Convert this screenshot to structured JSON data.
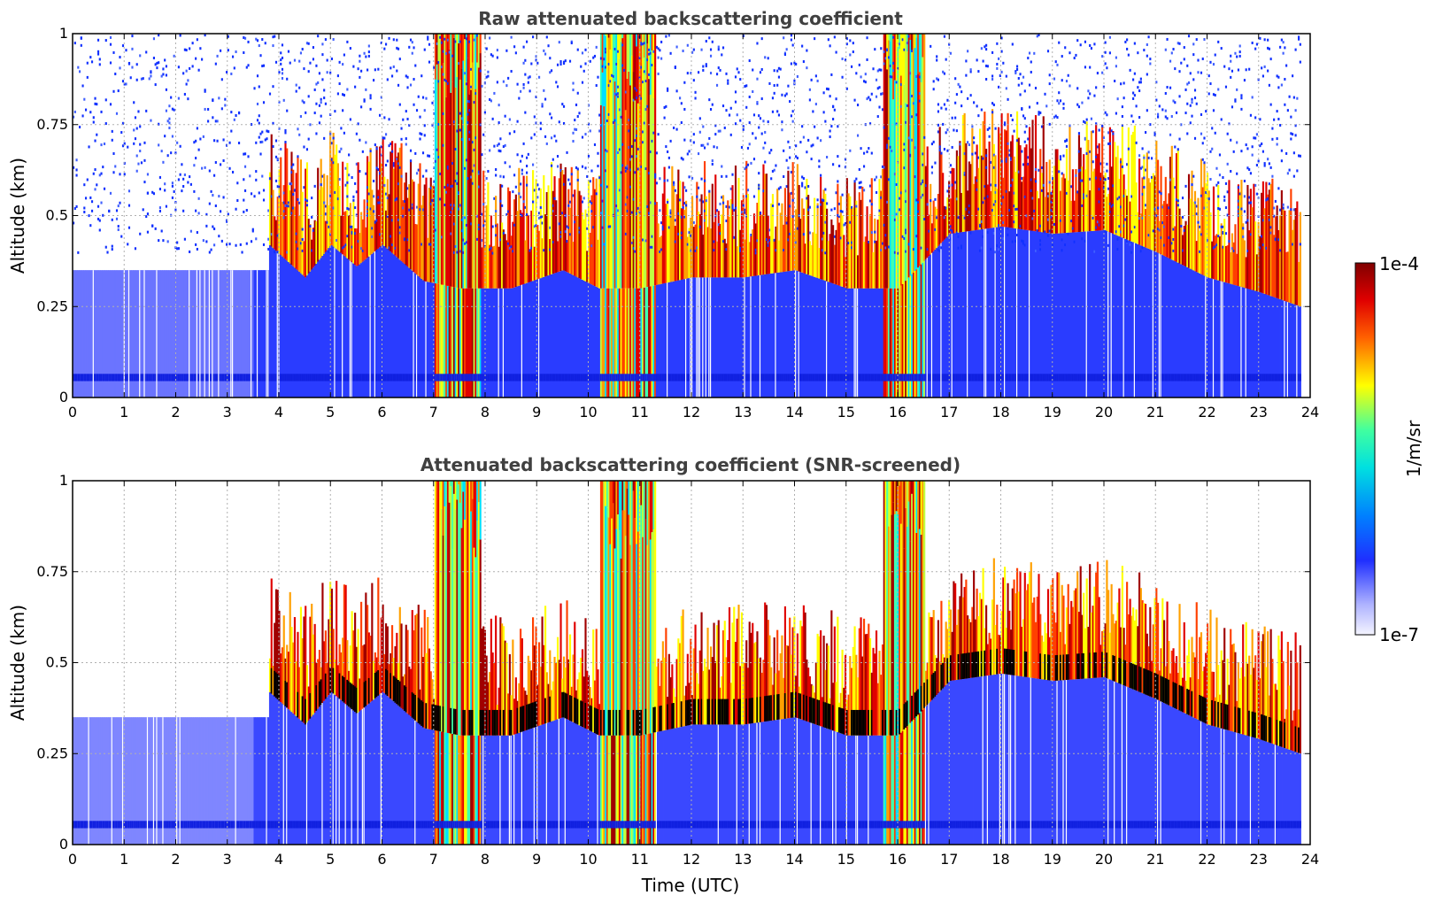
{
  "chart_data": [
    {
      "type": "heatmap",
      "title": "Raw attenuated backscattering coefficient",
      "xlabel": "",
      "ylabel": "Altitude (km)",
      "xlim": [
        0,
        24
      ],
      "ylim": [
        0,
        1
      ],
      "x_ticks": [
        "0",
        "1",
        "2",
        "3",
        "4",
        "5",
        "6",
        "7",
        "8",
        "9",
        "10",
        "11",
        "12",
        "13",
        "14",
        "15",
        "16",
        "17",
        "18",
        "19",
        "20",
        "21",
        "22",
        "23",
        "24"
      ],
      "y_ticks": [
        "0",
        "0.25",
        "0.5",
        "0.75",
        "1"
      ],
      "grid": true,
      "screened": false
    },
    {
      "type": "heatmap",
      "title": "Attenuated backscattering coefficient (SNR-screened)",
      "xlabel": "Time (UTC)",
      "ylabel": "Altitude (km)",
      "xlim": [
        0,
        24
      ],
      "ylim": [
        0,
        1
      ],
      "x_ticks": [
        "0",
        "1",
        "2",
        "3",
        "4",
        "5",
        "6",
        "7",
        "8",
        "9",
        "10",
        "11",
        "12",
        "13",
        "14",
        "15",
        "16",
        "17",
        "18",
        "19",
        "20",
        "21",
        "22",
        "23",
        "24"
      ],
      "y_ticks": [
        "0",
        "0.25",
        "0.5",
        "0.75",
        "1"
      ],
      "grid": true,
      "screened": true
    }
  ],
  "colorbar": {
    "label": "1/m/sr",
    "min_label": "1e-7",
    "max_label": "1e-4",
    "scale": "log",
    "colormap": "jet"
  },
  "profile": {
    "cloud_base_km": [
      [
        3.8,
        0.42
      ],
      [
        4.5,
        0.33
      ],
      [
        5.0,
        0.42
      ],
      [
        5.5,
        0.36
      ],
      [
        6.0,
        0.42
      ],
      [
        6.8,
        0.32
      ],
      [
        7.5,
        0.3
      ],
      [
        8.5,
        0.3
      ],
      [
        9.5,
        0.35
      ],
      [
        10.2,
        0.3
      ],
      [
        11.0,
        0.3
      ],
      [
        12.0,
        0.33
      ],
      [
        13.0,
        0.33
      ],
      [
        14.0,
        0.35
      ],
      [
        15.0,
        0.3
      ],
      [
        16.0,
        0.3
      ],
      [
        17.0,
        0.45
      ],
      [
        18.0,
        0.47
      ],
      [
        19.0,
        0.45
      ],
      [
        20.0,
        0.46
      ],
      [
        21.0,
        0.4
      ],
      [
        22.0,
        0.33
      ],
      [
        23.0,
        0.29
      ],
      [
        23.8,
        0.25
      ]
    ],
    "strong_columns_utc": [
      [
        7.0,
        7.9
      ],
      [
        10.2,
        11.3
      ],
      [
        15.7,
        16.5
      ]
    ],
    "last_column_utc": 23.8
  }
}
